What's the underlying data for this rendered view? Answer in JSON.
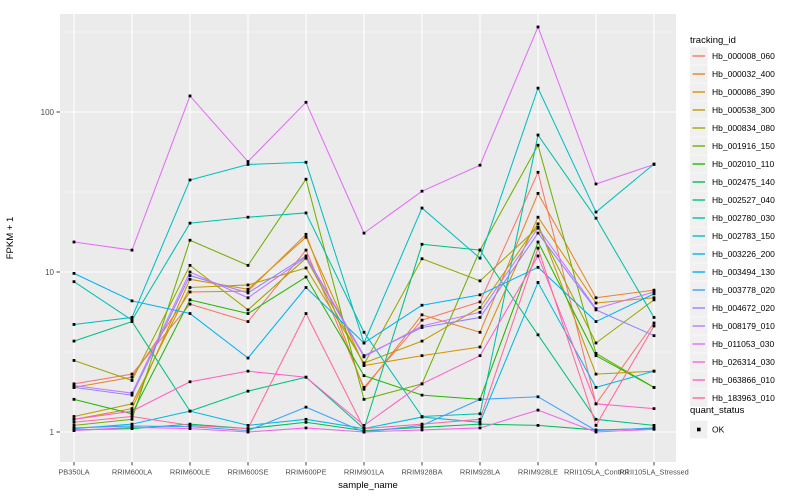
{
  "chart_data": {
    "type": "line",
    "title": "",
    "xlabel": "sample_name",
    "ylabel": "FPKM + 1",
    "y_scale": "log10",
    "y_ticks": [
      1,
      10,
      100
    ],
    "y_tick_labels": [
      "1",
      "10",
      "100"
    ],
    "y_minor_ticks": [
      3.162,
      31.62,
      316.2
    ],
    "ylim": [
      0.9,
      410
    ],
    "grid": true,
    "legend_position": "right",
    "point_marker": "black-square",
    "categories": [
      "PB350LA",
      "RRIM600LA",
      "RRIM600LE",
      "RRIM600SE",
      "RRIM600PE",
      "RRIM901LA",
      "RRIM928BA",
      "RRIM928LA",
      "RRIM928LE",
      "RRII105LA_Control",
      "RRII105LA_Stressed"
    ],
    "series": [
      {
        "name": "Hb_000008_060",
        "color": "#F8766D",
        "values": [
          2.0,
          2.3,
          6.3,
          4.9,
          13.7,
          1.9,
          5.0,
          6.5,
          42,
          1.5,
          4.8
        ]
      },
      {
        "name": "Hb_000032_400",
        "color": "#E9842C",
        "values": [
          1.9,
          2.2,
          7.5,
          7.6,
          17.2,
          1.85,
          5.4,
          4.2,
          31,
          6.9,
          7.7
        ]
      },
      {
        "name": "Hb_000086_390",
        "color": "#D69100",
        "values": [
          1.2,
          1.4,
          9.0,
          7.8,
          16.5,
          2.6,
          3.0,
          3.4,
          22,
          6.4,
          6.9
        ]
      },
      {
        "name": "Hb_000538_300",
        "color": "#BC9D00",
        "values": [
          1.25,
          1.5,
          8.0,
          8.3,
          10.6,
          2.7,
          3.7,
          6.0,
          20,
          2.3,
          2.4
        ]
      },
      {
        "name": "Hb_000834_080",
        "color": "#9CA700",
        "values": [
          2.8,
          2.1,
          11.0,
          5.8,
          12.2,
          2.65,
          12.1,
          8.8,
          19,
          3.6,
          6.7
        ]
      },
      {
        "name": "Hb_001916_150",
        "color": "#6FB000",
        "values": [
          1.1,
          1.2,
          15.8,
          11.0,
          38,
          1.6,
          2.0,
          13.7,
          62,
          3.1,
          1.9
        ]
      },
      {
        "name": "Hb_002010_110",
        "color": "#24B700",
        "values": [
          1.6,
          1.3,
          6.7,
          5.5,
          9.3,
          2.25,
          1.7,
          1.6,
          15.4,
          3.0,
          1.9
        ]
      },
      {
        "name": "Hb_002475_140",
        "color": "#00BC59",
        "values": [
          1.03,
          1.05,
          1.12,
          1.05,
          1.15,
          1.02,
          1.07,
          1.12,
          1.1,
          1.03,
          1.05
        ]
      },
      {
        "name": "Hb_002527_040",
        "color": "#00C086",
        "values": [
          3.7,
          4.9,
          1.35,
          1.8,
          2.2,
          1.05,
          14.9,
          13.7,
          4.05,
          1.2,
          1.1
        ]
      },
      {
        "name": "Hb_002780_030",
        "color": "#00C1AA",
        "values": [
          8.7,
          5.0,
          20.2,
          22.0,
          23.4,
          4.2,
          1.25,
          1.3,
          71.8,
          21.7,
          5.2
        ]
      },
      {
        "name": "Hb_002783_150",
        "color": "#00BFC4",
        "values": [
          4.7,
          5.2,
          37.6,
          47.0,
          48.5,
          3.6,
          25.1,
          12.2,
          141,
          23.7,
          47.3
        ]
      },
      {
        "name": "Hb_003226_200",
        "color": "#00BAE2",
        "values": [
          1.05,
          1.12,
          1.35,
          1.1,
          1.2,
          1.05,
          1.24,
          1.15,
          8.6,
          1.9,
          2.4
        ]
      },
      {
        "name": "Hb_003494_130",
        "color": "#00B2F3",
        "values": [
          9.8,
          6.6,
          5.5,
          2.9,
          8.0,
          3.6,
          6.2,
          7.2,
          10.7,
          4.9,
          7.3
        ]
      },
      {
        "name": "Hb_003778_020",
        "color": "#3FA1FF",
        "values": [
          1.06,
          1.09,
          1.08,
          1.02,
          1.43,
          1.0,
          1.1,
          1.6,
          1.66,
          1.02,
          1.06
        ]
      },
      {
        "name": "Hb_004672_020",
        "color": "#9183FF",
        "values": [
          1.9,
          1.7,
          9.5,
          7.4,
          12.6,
          3.0,
          4.5,
          5.2,
          17.5,
          5.8,
          4.0
        ]
      },
      {
        "name": "Hb_008179_010",
        "color": "#C279FF",
        "values": [
          1.95,
          1.75,
          10.0,
          6.9,
          12.4,
          2.95,
          4.6,
          5.6,
          18.8,
          5.9,
          7.5
        ]
      },
      {
        "name": "Hb_011053_030",
        "color": "#E36EF6",
        "values": [
          15.4,
          13.7,
          126,
          49,
          115,
          17.5,
          32,
          46.5,
          340,
          35.5,
          47
        ]
      },
      {
        "name": "Hb_026314_030",
        "color": "#F166E8",
        "values": [
          1.02,
          1.07,
          1.05,
          1.0,
          1.06,
          1.0,
          1.03,
          1.06,
          1.37,
          1.0,
          1.04
        ]
      },
      {
        "name": "Hb_063866_010",
        "color": "#FF61C7",
        "values": [
          1.2,
          1.35,
          2.06,
          2.4,
          2.2,
          1.1,
          2.0,
          3.0,
          12.6,
          1.5,
          1.4
        ]
      },
      {
        "name": "Hb_183963_010",
        "color": "#FF689E",
        "values": [
          1.15,
          1.25,
          1.1,
          1.05,
          5.5,
          1.05,
          1.12,
          1.2,
          14.1,
          1.1,
          4.6
        ]
      }
    ],
    "legend": {
      "tracking_title": "tracking_id",
      "quant_title": "quant_status",
      "quant_items": [
        {
          "label": "OK",
          "marker": "black-square"
        }
      ]
    },
    "colors": {
      "panel_bg": "#EBEBEB",
      "grid_major": "#FFFFFF",
      "grid_minor": "#F5F5F5",
      "tick_label": "#4D4D4D",
      "axis_title": "#000000",
      "point": "#000000",
      "legend_key_bg": "#F0F0F0",
      "tick_mark": "#333333"
    }
  }
}
